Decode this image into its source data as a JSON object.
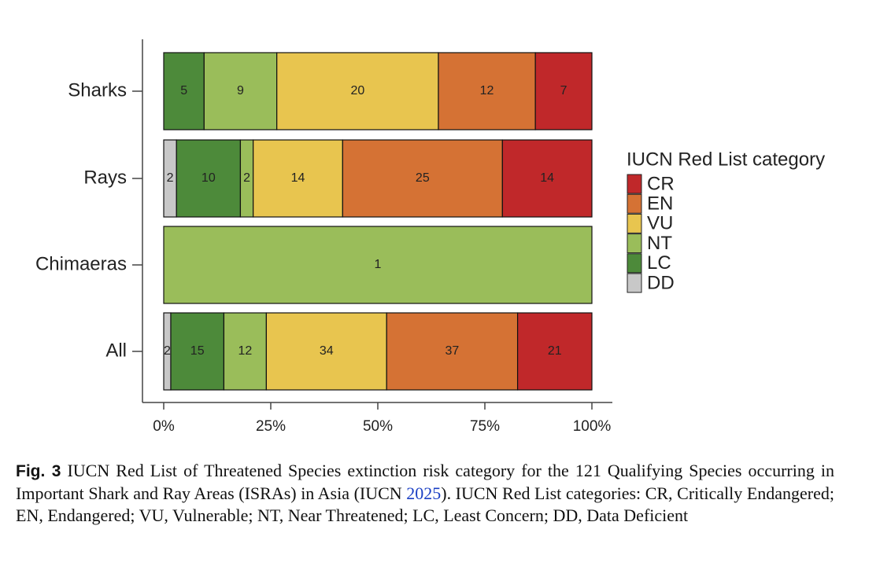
{
  "chart_data": {
    "type": "stacked-percent-barh",
    "categories": [
      "Sharks",
      "Rays",
      "Chimaeras",
      "All"
    ],
    "series": [
      {
        "name": "DD",
        "color": "#c8c8c8",
        "values": [
          0,
          2,
          0,
          2
        ]
      },
      {
        "name": "LC",
        "color": "#4d8a3a",
        "values": [
          5,
          10,
          0,
          15
        ]
      },
      {
        "name": "NT",
        "color": "#9abd5a",
        "values": [
          9,
          2,
          1,
          12
        ]
      },
      {
        "name": "VU",
        "color": "#e8c54f",
        "values": [
          20,
          14,
          0,
          34
        ]
      },
      {
        "name": "EN",
        "color": "#d57234",
        "values": [
          12,
          25,
          0,
          37
        ]
      },
      {
        "name": "CR",
        "color": "#c0282a",
        "values": [
          7,
          14,
          0,
          21
        ]
      }
    ],
    "xlim": [
      0,
      100
    ],
    "xticks": [
      {
        "value": 0,
        "label": "0%"
      },
      {
        "value": 25,
        "label": "25%"
      },
      {
        "value": 50,
        "label": "50%"
      },
      {
        "value": 75,
        "label": "75%"
      },
      {
        "value": 100,
        "label": "100%"
      }
    ],
    "legend_title": "IUCN Red List category"
  },
  "caption": {
    "label": "Fig. 3",
    "text_before": "IUCN Red List of Threatened Species extinction risk category for the 121 Qualifying Species occurring in Important Shark and Ray Areas (ISRAs) in Asia (IUCN ",
    "link": "2025",
    "text_after": "). IUCN Red List categories: CR, Critically Endangered; EN, Endangered; VU, Vulnerable; NT, Near Threatened; LC, Least Concern; DD, Data Deficient"
  }
}
